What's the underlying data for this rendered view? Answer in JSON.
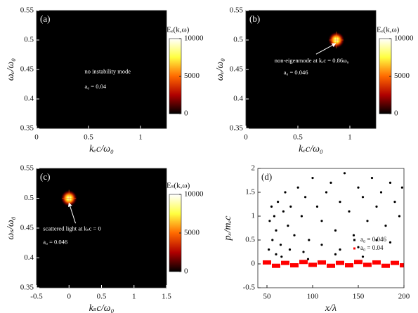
{
  "chart_data": [
    {
      "type": "heatmap",
      "panel_label": "(a)",
      "xlabel": "kₑc/ω₀",
      "ylabel": "ωₑ/ω₀",
      "xlim": [
        0,
        1.25
      ],
      "xticks": [
        0,
        0.5,
        1
      ],
      "ylim": [
        0.35,
        0.55
      ],
      "yticks": [
        0.35,
        0.4,
        0.45,
        0.5,
        0.55
      ],
      "colorbar": {
        "label": "Eₑ(k,ω)",
        "lim": [
          0,
          10000
        ],
        "ticks": [
          0,
          5000,
          10000
        ]
      },
      "cmap": [
        "#000000",
        "#b00000",
        "#ff6a00",
        "#ffff40",
        "#ffffff"
      ],
      "annotations": [
        "no instability mode",
        "a₀ = 0.04"
      ]
    },
    {
      "type": "heatmap",
      "panel_label": "(b)",
      "xlabel": "kₑc/ω₀",
      "ylabel": "ωₑ/ω₀",
      "xlim": [
        0,
        1.25
      ],
      "xticks": [
        0,
        0.5,
        1
      ],
      "ylim": [
        0.35,
        0.55
      ],
      "yticks": [
        0.35,
        0.4,
        0.45,
        0.5,
        0.55
      ],
      "colorbar": {
        "label": "Eₑ(k,ω)",
        "lim": [
          0,
          10000
        ],
        "ticks": [
          0,
          5000,
          10000
        ]
      },
      "cmap": [
        "#000000",
        "#b00000",
        "#ff6a00",
        "#ffff40",
        "#ffffff"
      ],
      "annotations": [
        "non-eigenmode at kₑc = 0.86ω₀",
        "a₀ = 0.046"
      ],
      "peak": {
        "k": 0.87,
        "omega": 0.5,
        "value": 10000
      }
    },
    {
      "type": "heatmap",
      "panel_label": "(c)",
      "xlabel": "kₛc/ω₀",
      "ylabel": "ωₛ/ω₀",
      "xlim": [
        -0.5,
        1.5
      ],
      "xticks": [
        -0.5,
        0,
        0.5,
        1,
        1.5
      ],
      "ylim": [
        0.35,
        0.55
      ],
      "yticks": [
        0.35,
        0.4,
        0.45,
        0.5,
        0.55
      ],
      "colorbar": {
        "label": "Eₛ(k,ω)",
        "lim": [
          0,
          10000
        ],
        "ticks": [
          0,
          5000,
          10000
        ]
      },
      "cmap": [
        "#000000",
        "#b00000",
        "#ff6a00",
        "#ffff40",
        "#ffffff"
      ],
      "annotations": [
        "scattered light at kₛc = 0",
        "a₀ = 0.046"
      ],
      "peak": {
        "k": 0,
        "omega": 0.5,
        "value": 10000
      }
    },
    {
      "type": "scatter",
      "panel_label": "(d)",
      "xlabel": "x/λ",
      "ylabel": "pₓ/mₑc",
      "xlim": [
        40,
        200
      ],
      "xticks": [
        50,
        100,
        150,
        200
      ],
      "ylim": [
        -0.5,
        2
      ],
      "yticks": [
        -0.5,
        0,
        0.5,
        1,
        1.5,
        2
      ],
      "legend": "right",
      "series": [
        {
          "name": "a₀ = 0.046",
          "color": "#000000",
          "x": [
            52,
            53,
            55,
            56,
            58,
            60,
            62,
            65,
            68,
            70,
            73,
            76,
            80,
            84,
            88,
            92,
            96,
            100,
            105,
            110,
            115,
            120,
            125,
            130,
            135,
            140,
            145,
            150,
            155,
            160,
            165,
            170,
            175,
            180,
            185,
            190,
            195,
            198,
            60,
            75,
            90,
            110,
            130,
            150,
            170,
            185,
            66,
            95,
            125,
            155
          ],
          "y": [
            0.3,
            0.9,
            1.2,
            0.5,
            1.0,
            0.7,
            1.3,
            0.4,
            1.1,
            1.5,
            0.8,
            1.2,
            0.6,
            1.6,
            1.0,
            1.4,
            0.5,
            1.8,
            1.2,
            0.9,
            1.5,
            1.7,
            0.7,
            1.3,
            1.9,
            1.1,
            0.6,
            1.6,
            1.4,
            0.9,
            1.8,
            1.2,
            1.5,
            0.8,
            1.7,
            1.3,
            1.0,
            1.6,
            0.2,
            0.3,
            0.25,
            0.4,
            0.3,
            0.35,
            0.5,
            0.45,
            0.15,
            0.1,
            0.2,
            0.15
          ]
        },
        {
          "name": "a₀ = 0.04",
          "color": "#ff0000",
          "x": [
            50,
            60,
            70,
            80,
            90,
            100,
            110,
            120,
            130,
            140,
            150,
            160,
            170,
            180,
            190,
            200
          ],
          "y": [
            0.03,
            -0.04,
            0.02,
            -0.03,
            0.04,
            -0.02,
            0.03,
            -0.04,
            0.02,
            -0.03,
            0.04,
            -0.02,
            0.03,
            -0.04,
            0.02,
            -0.03
          ]
        }
      ]
    }
  ]
}
